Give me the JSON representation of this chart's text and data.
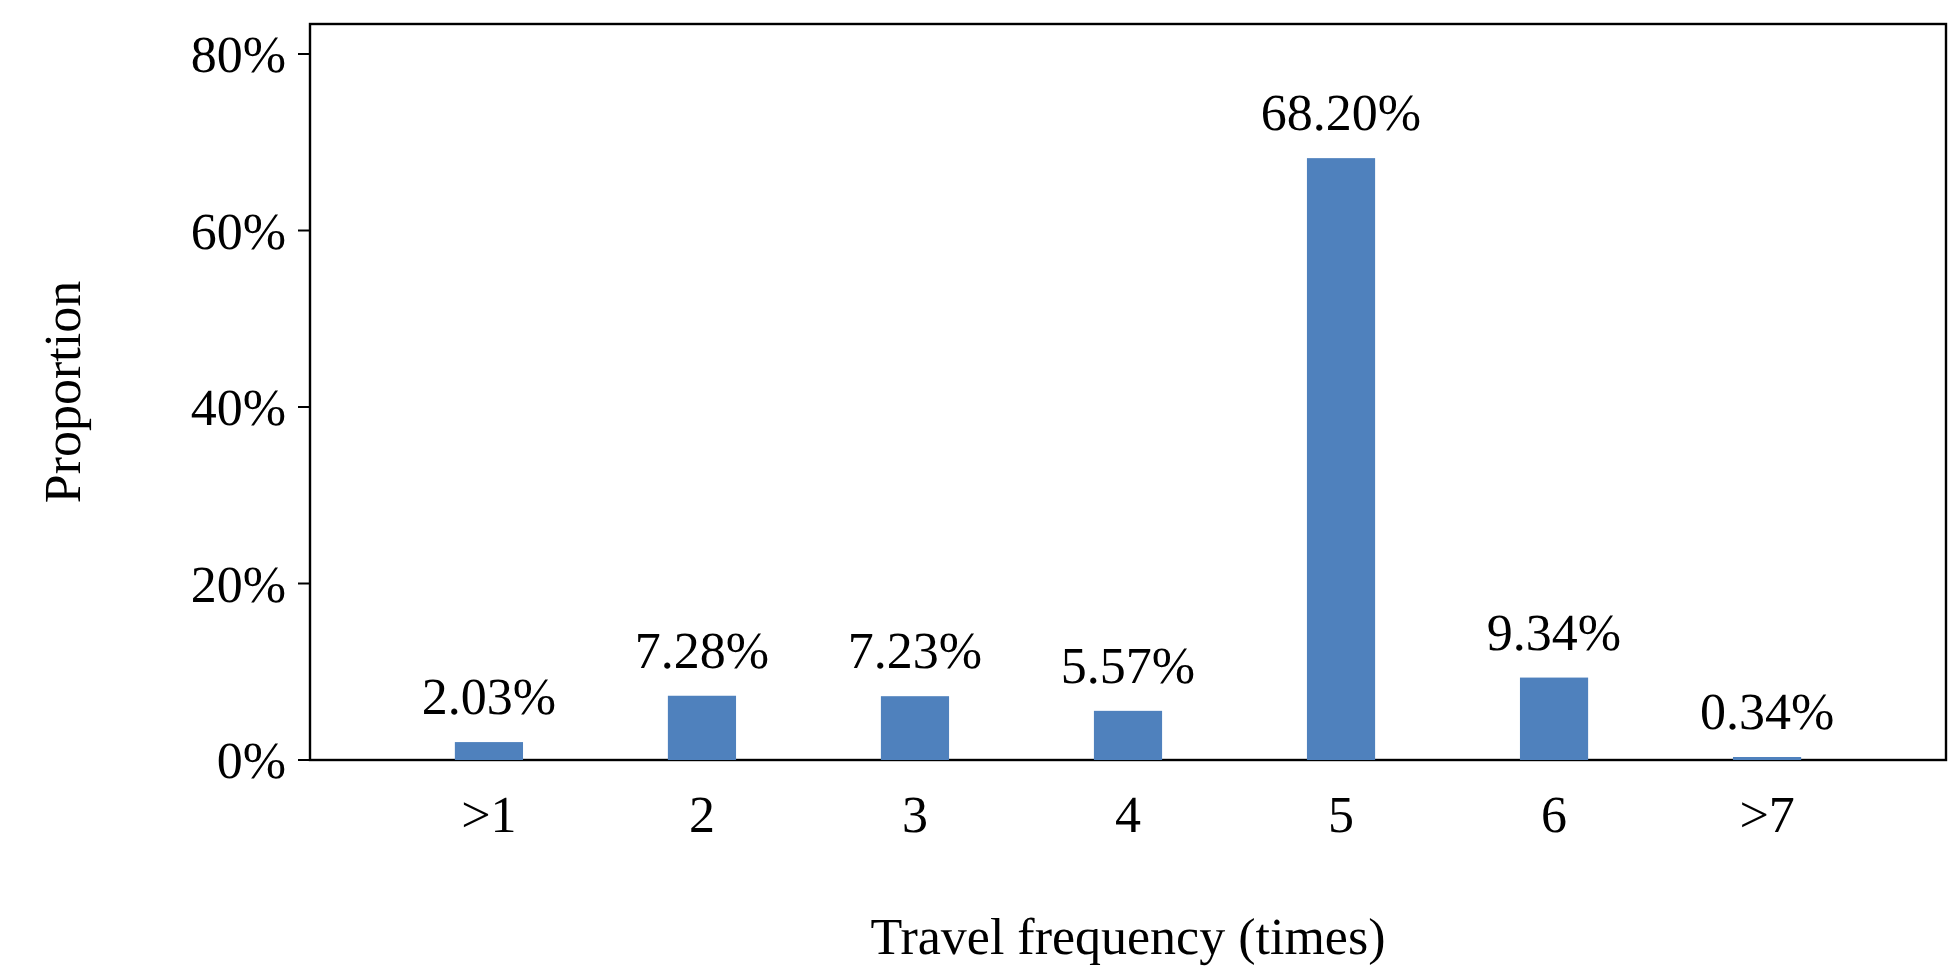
{
  "chart_data": {
    "type": "bar",
    "xlabel": "Travel frequency (times)",
    "ylabel": "Proportion",
    "categories": [
      ">1",
      "2",
      "3",
      "4",
      "5",
      "6",
      ">7"
    ],
    "values": [
      2.03,
      7.28,
      7.23,
      5.57,
      68.2,
      9.34,
      0.34
    ],
    "value_labels": [
      "2.03%",
      "7.28%",
      "7.23%",
      "5.57%",
      "68.20%",
      "9.34%",
      "0.34%"
    ],
    "color": "#4f81bd",
    "ylim": [
      0,
      83.4
    ],
    "yticks": [
      {
        "value": 0,
        "label": "0%"
      },
      {
        "value": 20,
        "label": "20%"
      },
      {
        "value": 40,
        "label": "40%"
      },
      {
        "value": 60,
        "label": "60%"
      },
      {
        "value": 80,
        "label": "80%"
      }
    ],
    "grid": false
  }
}
